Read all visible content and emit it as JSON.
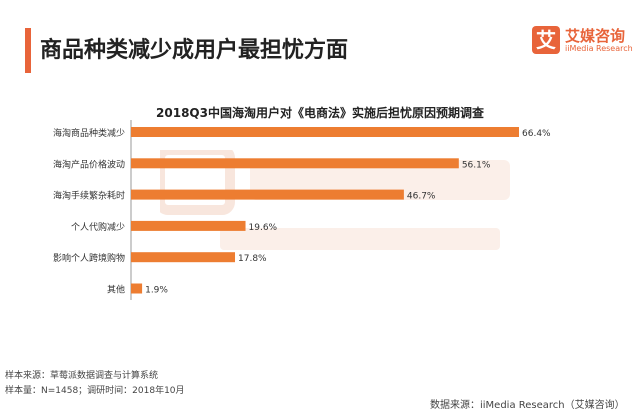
{
  "header": {
    "title": "商品种类减少成用户最担忧方面",
    "logo_mark": "艾",
    "logo_cn": "艾媒咨询",
    "logo_en": "iiMedia Research"
  },
  "watermark": {
    "cn": "艾媒咨询",
    "en": "iiMedia Research"
  },
  "chart_data": {
    "type": "bar",
    "orientation": "horizontal",
    "title": "2018Q3中国海淘用户对《电商法》实施后担忧原因预期调查",
    "categories": [
      "海淘商品种类减少",
      "海淘产品价格波动",
      "海淘手续繁杂耗时",
      "个人代购减少",
      "影响个人跨境购物",
      "其他"
    ],
    "values": [
      66.4,
      56.1,
      46.7,
      19.6,
      17.8,
      1.9
    ],
    "labels": [
      "66.4%",
      "56.1%",
      "46.7%",
      "19.6%",
      "17.8%",
      "1.9%"
    ],
    "unit": "%",
    "color": "#ed7d31",
    "xlim": [
      0,
      70
    ]
  },
  "footer": {
    "sample_source": "样本来源：草莓派数据调查与计算系统",
    "sample_size": "样本量：N=1458；调研时间：2018年10月",
    "data_source": "数据来源：iiMedia Research（艾媒咨询）"
  }
}
